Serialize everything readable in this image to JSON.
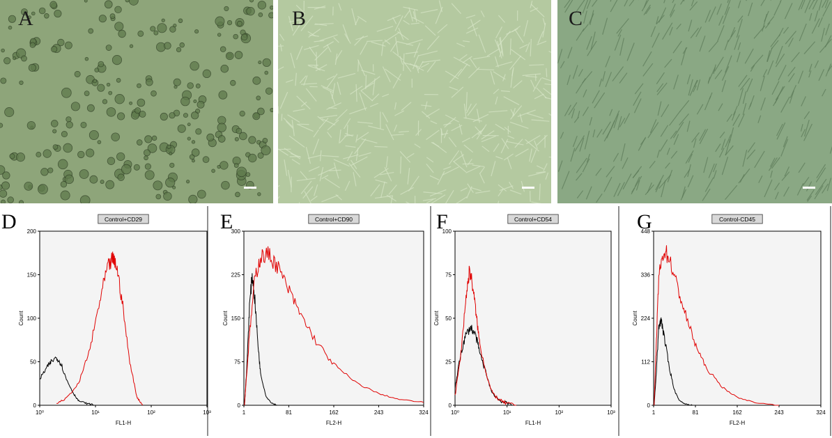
{
  "micrographs": [
    {
      "letter": "A",
      "bg": "#8ea57a"
    },
    {
      "letter": "B",
      "bg": "#b4c9a0"
    },
    {
      "letter": "C",
      "bg": "#8aa884"
    }
  ],
  "colors": {
    "control": "#000000",
    "marker": "#e00000",
    "plot_bg": "#f4f4f4"
  },
  "chart_data": [
    {
      "type": "line",
      "letter": "D",
      "title": "Control+CD29",
      "xlabel": "FL1-H",
      "ylabel": "Count",
      "xscale": "log",
      "xlim": [
        1,
        1000
      ],
      "ylim": [
        0,
        200
      ],
      "xticks": [
        "10⁰",
        "10¹",
        "10²",
        "10³"
      ],
      "yticks": [
        "0",
        "50",
        "100",
        "150",
        "200"
      ],
      "series": [
        {
          "color": "#000000",
          "x": [
            1,
            1.3,
            1.6,
            2,
            2.4,
            3,
            4,
            5,
            7,
            10
          ],
          "y": [
            30,
            42,
            50,
            55,
            48,
            30,
            14,
            5,
            2,
            0
          ]
        },
        {
          "color": "#e00000",
          "x": [
            2,
            3,
            5,
            8,
            12,
            16,
            20,
            24,
            30,
            40,
            55,
            70
          ],
          "y": [
            2,
            8,
            25,
            65,
            120,
            155,
            168,
            160,
            120,
            55,
            10,
            0
          ]
        }
      ]
    },
    {
      "type": "line",
      "letter": "E",
      "title": "Control+CD90",
      "xlabel": "FL2-H",
      "ylabel": "Count",
      "xscale": "linear",
      "xlim": [
        0,
        324
      ],
      "ylim": [
        0,
        300
      ],
      "xticks": [
        "1",
        "81",
        "162",
        "243",
        "324"
      ],
      "yticks": [
        "0",
        "75",
        "150",
        "225",
        "300"
      ],
      "series": [
        {
          "color": "#000000",
          "x": [
            1,
            5,
            10,
            15,
            20,
            25,
            30,
            40,
            50,
            60
          ],
          "y": [
            0,
            60,
            170,
            225,
            180,
            110,
            55,
            15,
            4,
            0
          ]
        },
        {
          "color": "#e00000",
          "x": [
            1,
            10,
            20,
            30,
            45,
            60,
            80,
            100,
            130,
            162,
            200,
            243,
            280,
            324
          ],
          "y": [
            0,
            120,
            220,
            255,
            260,
            240,
            200,
            160,
            110,
            70,
            40,
            20,
            10,
            5
          ]
        }
      ]
    },
    {
      "type": "line",
      "letter": "F",
      "title": "Control+CD54",
      "xlabel": "FL1-H",
      "ylabel": "Count",
      "xscale": "log",
      "xlim": [
        1,
        1000
      ],
      "ylim": [
        0,
        100
      ],
      "xticks": [
        "10⁰",
        "10¹",
        "10²",
        "10³"
      ],
      "yticks": [
        "0",
        "25",
        "50",
        "75",
        "100"
      ],
      "series": [
        {
          "color": "#000000",
          "x": [
            1,
            1.3,
            1.6,
            2,
            2.5,
            3,
            4,
            5,
            7,
            10,
            15
          ],
          "y": [
            10,
            30,
            40,
            45,
            40,
            30,
            18,
            8,
            3,
            1,
            0
          ]
        },
        {
          "color": "#e00000",
          "x": [
            1,
            1.3,
            1.6,
            1.9,
            2.2,
            2.6,
            3,
            4,
            5,
            7,
            10,
            15
          ],
          "y": [
            5,
            30,
            60,
            78,
            68,
            50,
            35,
            18,
            8,
            3,
            1,
            0
          ]
        }
      ]
    },
    {
      "type": "line",
      "letter": "G",
      "title": "Control-CD45",
      "xlabel": "FL2-H",
      "ylabel": "Count",
      "xscale": "linear",
      "xlim": [
        0,
        324
      ],
      "ylim": [
        0,
        448
      ],
      "xticks": [
        "1",
        "81",
        "162",
        "243",
        "324"
      ],
      "yticks": [
        "0",
        "112",
        "224",
        "336",
        "448"
      ],
      "series": [
        {
          "color": "#000000",
          "x": [
            1,
            5,
            10,
            15,
            20,
            30,
            40,
            50,
            60,
            75
          ],
          "y": [
            0,
            80,
            200,
            220,
            180,
            100,
            40,
            12,
            4,
            0
          ]
        },
        {
          "color": "#e00000",
          "x": [
            1,
            5,
            10,
            20,
            30,
            45,
            60,
            80,
            100,
            130,
            162,
            200,
            243
          ],
          "y": [
            0,
            150,
            330,
            400,
            380,
            310,
            240,
            160,
            100,
            50,
            20,
            6,
            0
          ]
        }
      ]
    }
  ]
}
